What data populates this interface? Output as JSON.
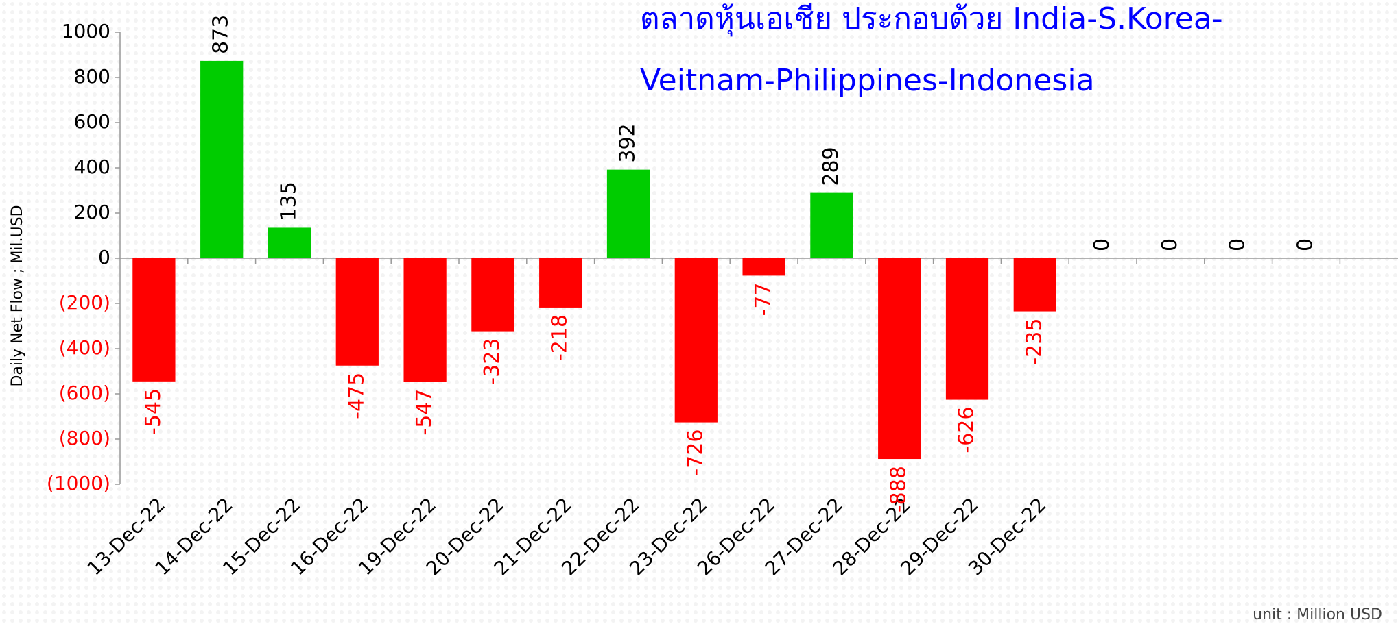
{
  "chart_data": {
    "type": "bar",
    "title_lines": [
      "ตลาดหุ้นเอเชีย ประกอบด้วย India-S.Korea-",
      "Veitnam-Philippines-Indonesia"
    ],
    "y_label": "Daily Net Flow ; Mil.USD",
    "note": "unit : Million USD",
    "categories": [
      "13-Dec-22",
      "14-Dec-22",
      "15-Dec-22",
      "16-Dec-22",
      "19-Dec-22",
      "20-Dec-22",
      "21-Dec-22",
      "22-Dec-22",
      "23-Dec-22",
      "26-Dec-22",
      "27-Dec-22",
      "28-Dec-22",
      "29-Dec-22",
      "30-Dec-22",
      null,
      null,
      null,
      null
    ],
    "values": [
      -545,
      873,
      135,
      -475,
      -547,
      -323,
      -218,
      392,
      -726,
      -77,
      289,
      -888,
      -626,
      -235,
      0,
      0,
      0,
      0
    ],
    "positive_color": "#00cc00",
    "negative_color": "#ff0000",
    "ylim": [
      -1000,
      1000
    ],
    "yticks": [
      {
        "value": -1000,
        "label": "(1000)"
      },
      {
        "value": -800,
        "label": "(800)"
      },
      {
        "value": -600,
        "label": "(600)"
      },
      {
        "value": -400,
        "label": "(400)"
      },
      {
        "value": -200,
        "label": "(200)"
      },
      0,
      200,
      400,
      600,
      800,
      1000
    ],
    "title_color": "#0000ff"
  }
}
